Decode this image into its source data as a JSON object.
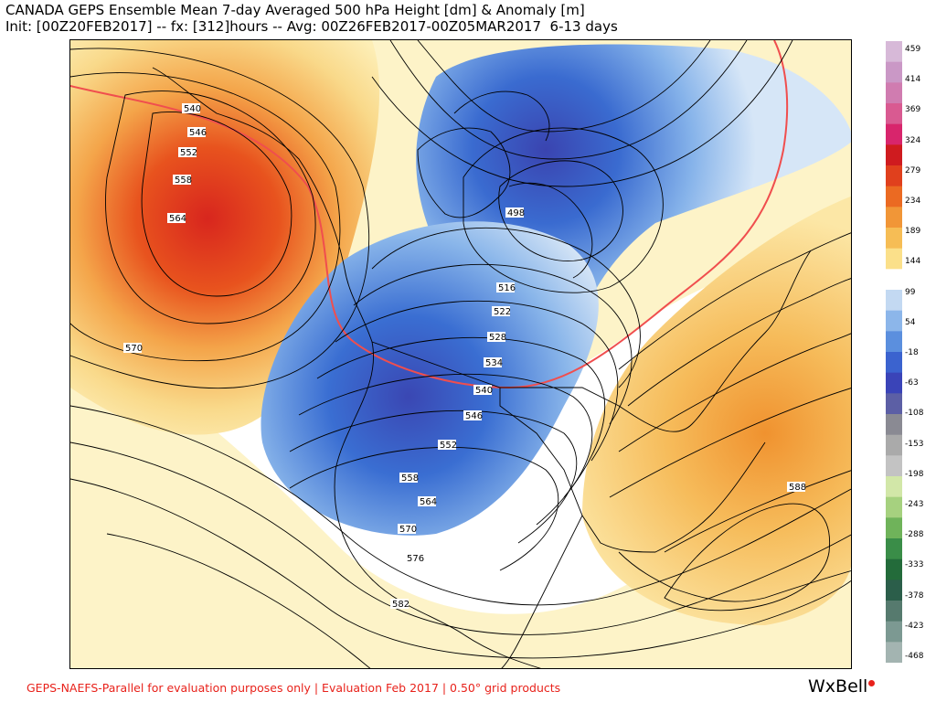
{
  "title": {
    "line1": "CANADA GEPS Ensemble Mean 7-day Averaged 500 hPa Height [dm] & Anomaly [m]",
    "line2": "Init: [00Z20FEB2017] -- fx: [312]hours -- Avg: 00Z26FEB2017-00Z05MAR2017  6-13 days"
  },
  "colorbar": {
    "ticks": [
      "459",
      "414",
      "369",
      "324",
      "279",
      "234",
      "189",
      "144",
      "99",
      "54",
      "-18",
      "-63",
      "-108",
      "-153",
      "-198",
      "-243",
      "-288",
      "-333",
      "-378",
      "-423",
      "-468"
    ],
    "colors": [
      "#d7b9d8",
      "#ca98c6",
      "#d07cb0",
      "#d95a91",
      "#d8256c",
      "#cf1b1f",
      "#e0401d",
      "#eb6a22",
      "#f19637",
      "#f6bd55",
      "#fbe08a",
      "#ffffff",
      "#c3d9f2",
      "#8cb6ea",
      "#5b8fde",
      "#3b63cf",
      "#3a44b8",
      "#5c5fa5",
      "#8a8a93",
      "#aaaaaa",
      "#c3c3c3",
      "#d2e7a8",
      "#a6d17f",
      "#6fb35a",
      "#3a8d48",
      "#236b3a",
      "#2b5e4a",
      "#567a6e",
      "#7c9992",
      "#a3b4b1"
    ]
  },
  "map": {
    "contour_labels": [
      "540",
      "546",
      "552",
      "558",
      "564",
      "570",
      "498",
      "516",
      "522",
      "528",
      "534",
      "540",
      "546",
      "552",
      "558",
      "564",
      "570",
      "576",
      "582",
      "588"
    ],
    "anomaly_colors": {
      "pos_light": "#fbe9a0",
      "pos_mid": "#f7c96a",
      "pos_high": "#f08a38",
      "pos_max": "#d8261e",
      "neg_light": "#c5dcf3",
      "neg_mid": "#6e9ee2",
      "neg_high": "#3a64cf",
      "neg_max": "#3b45b0",
      "zero_line": "#f04e4e"
    }
  },
  "footer": {
    "text": "GEPS-NAEFS-Parallel for evaluation purposes only | Evaluation Feb 2017 | 0.50° grid products"
  },
  "brand": {
    "name": "WxBell"
  }
}
